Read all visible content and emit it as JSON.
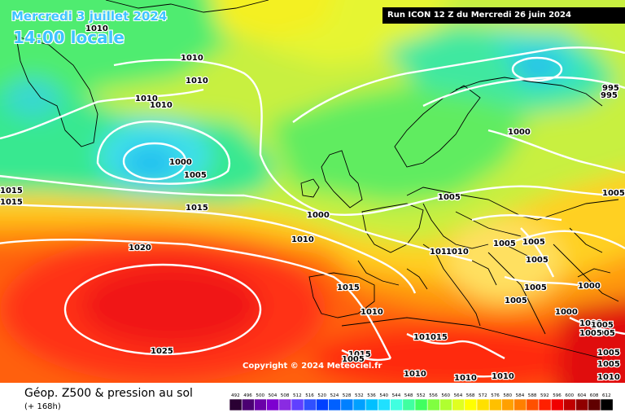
{
  "valid_date": "Mercredi 3 juillet 2024",
  "valid_time": "14:00 locale",
  "run_info": "Run ICON 12 Z du Mercredi 26 juin 2024",
  "copyright": "Copyright © 2024 Meteociel.fr",
  "footer": {
    "title": "Géop. Z500 & pression au sol",
    "lead": "(+ 168h)"
  },
  "scale": {
    "ticks": [
      "492",
      "496",
      "500",
      "504",
      "508",
      "512",
      "516",
      "520",
      "524",
      "528",
      "532",
      "536",
      "540",
      "544",
      "548",
      "552",
      "556",
      "560",
      "564",
      "568",
      "572",
      "576",
      "580",
      "584",
      "588",
      "592",
      "596",
      "600",
      "604",
      "608",
      "612"
    ],
    "colors": [
      "#2a0033",
      "#4b0072",
      "#6a00a8",
      "#7d00d0",
      "#8a2be2",
      "#6040ff",
      "#3050ff",
      "#0040ff",
      "#0060ff",
      "#0080ff",
      "#00a0ff",
      "#00c0ff",
      "#20e0ff",
      "#40ffe0",
      "#40ffa0",
      "#40ff60",
      "#80ff40",
      "#b0ff30",
      "#e0ff20",
      "#ffff00",
      "#ffe000",
      "#ffc000",
      "#ffa000",
      "#ff8000",
      "#ff5000",
      "#ff2000",
      "#f00000",
      "#c00000",
      "#900000",
      "#600000",
      "#000000"
    ]
  },
  "isobar_labels": [
    {
      "text": "1010"
    },
    {
      "text": "1010"
    },
    {
      "text": "1010"
    },
    {
      "text": "1010"
    },
    {
      "text": "1010"
    },
    {
      "text": "1000"
    },
    {
      "text": "1005"
    },
    {
      "text": "1015"
    },
    {
      "text": "1015"
    },
    {
      "text": "1015"
    },
    {
      "text": "1020"
    },
    {
      "text": "1025"
    },
    {
      "text": "1000"
    },
    {
      "text": "1010"
    },
    {
      "text": "1005"
    },
    {
      "text": "1000"
    },
    {
      "text": "995"
    },
    {
      "text": "995"
    },
    {
      "text": "1005"
    },
    {
      "text": "1015"
    },
    {
      "text": "1010"
    },
    {
      "text": "1010"
    },
    {
      "text": "1010"
    },
    {
      "text": "1005"
    },
    {
      "text": "1005"
    },
    {
      "text": "1005"
    },
    {
      "text": "1005"
    },
    {
      "text": "1005"
    },
    {
      "text": "1000"
    },
    {
      "text": "1000"
    },
    {
      "text": "1000"
    },
    {
      "text": "1005"
    },
    {
      "text": "1005"
    },
    {
      "text": "1005"
    },
    {
      "text": "1005"
    },
    {
      "text": "1005"
    },
    {
      "text": "1010"
    },
    {
      "text": "1010"
    },
    {
      "text": "1015"
    },
    {
      "text": "1015"
    },
    {
      "text": "1005"
    },
    {
      "text": "1010"
    },
    {
      "text": "1010"
    },
    {
      "text": "1010"
    }
  ]
}
